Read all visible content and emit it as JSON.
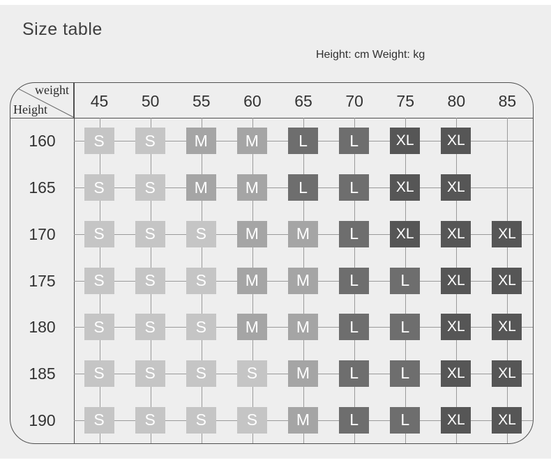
{
  "title": "Size table",
  "units_note": "Height: cm Weight: kg",
  "corner": {
    "top_label": "weight",
    "bottom_label": "Height"
  },
  "colors": {
    "panel_bg": "#eeeeee",
    "table_border": "#4f4f4f",
    "grid_line": "#9a9a9a",
    "header_text": "#333333",
    "cell_text": "#ffffff"
  },
  "chart_data": {
    "type": "table",
    "title": "Size table",
    "x_axis_label": "weight (kg)",
    "y_axis_label": "Height (cm)",
    "columns": [
      "45",
      "50",
      "55",
      "60",
      "65",
      "70",
      "75",
      "80",
      "85"
    ],
    "rows": [
      "160",
      "165",
      "170",
      "175",
      "180",
      "185",
      "190"
    ],
    "matrix": [
      [
        "S",
        "S",
        "M",
        "M",
        "L",
        "L",
        "XL",
        "XL",
        ""
      ],
      [
        "S",
        "S",
        "M",
        "M",
        "L",
        "L",
        "XL",
        "XL",
        ""
      ],
      [
        "S",
        "S",
        "S",
        "M",
        "M",
        "L",
        "XL",
        "XL",
        "XL"
      ],
      [
        "S",
        "S",
        "S",
        "M",
        "M",
        "L",
        "L",
        "XL",
        "XL"
      ],
      [
        "S",
        "S",
        "S",
        "M",
        "M",
        "L",
        "L",
        "XL",
        "XL"
      ],
      [
        "S",
        "S",
        "S",
        "S",
        "M",
        "L",
        "L",
        "XL",
        "XL"
      ],
      [
        "S",
        "S",
        "S",
        "S",
        "M",
        "L",
        "L",
        "XL",
        "XL"
      ]
    ],
    "size_colors": {
      "S": "#c5c5c5",
      "M": "#a5a5a5",
      "L": "#6e6e6e",
      "XL": "#565656"
    }
  }
}
